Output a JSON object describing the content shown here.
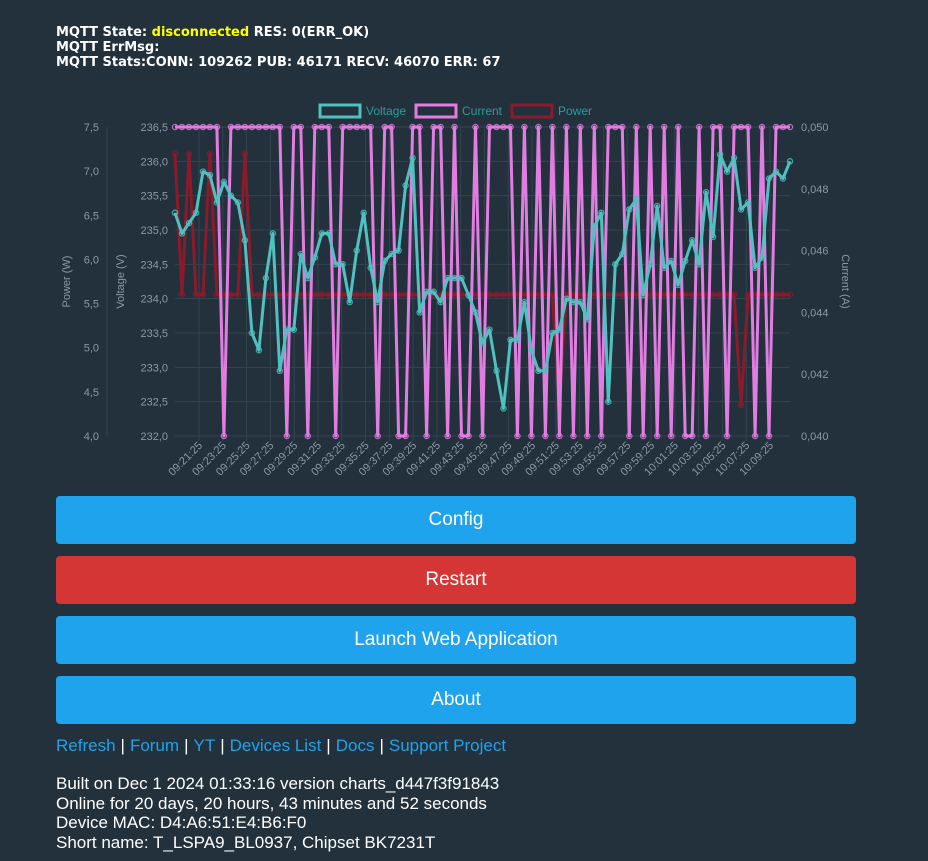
{
  "mqtt": {
    "state_label": "MQTT State:",
    "state_value": "disconnected",
    "res_text": "RES: 0(ERR_OK)",
    "errmsg_label": "MQTT ErrMsg:",
    "stats_text": "MQTT Stats:CONN: 109262 PUB: 46171 RECV: 46070 ERR: 67"
  },
  "colors": {
    "voltage": "#4fc1c1",
    "current": "#e17de1",
    "power": "#8b1a2b",
    "button_blue": "#1fa3ec",
    "button_red": "#d43535",
    "state_yellow": "#ffff00"
  },
  "chart_data": {
    "type": "line",
    "legend_position": "top",
    "grid": true,
    "x_ticks": [
      "09:21:25",
      "09:23:25",
      "09:25:25",
      "09:27:25",
      "09:29:25",
      "09:31:25",
      "09:33:25",
      "09:35:25",
      "09:37:25",
      "09:39:25",
      "09:41:25",
      "09:43:25",
      "09:45:25",
      "09:47:25",
      "09:49:25",
      "09:51:25",
      "09:53:25",
      "09:55:25",
      "09:57:25",
      "09:59:25",
      "10:01:25",
      "10:03:25",
      "10:05:25",
      "10:07:25",
      "10:09:25"
    ],
    "axes": {
      "power": {
        "label": "Power (W)",
        "range": [
          4.0,
          7.5
        ],
        "ticks": [
          "4,0",
          "4,5",
          "5,0",
          "5,5",
          "6,0",
          "6,5",
          "7,0",
          "7,5"
        ]
      },
      "voltage": {
        "label": "Voltage (V)",
        "range": [
          232.0,
          236.5
        ],
        "ticks": [
          "232,0",
          "232,5",
          "233,0",
          "233,5",
          "234,0",
          "234,5",
          "235,0",
          "235,5",
          "236,0",
          "236,5"
        ]
      },
      "current": {
        "label": "Current (A)",
        "range": [
          0.04,
          0.05
        ],
        "ticks": [
          "0,040",
          "0,042",
          "0,044",
          "0,046",
          "0,048",
          "0,050"
        ]
      }
    },
    "series": [
      {
        "name": "Voltage",
        "axis": "voltage",
        "values": [
          235.25,
          234.95,
          235.1,
          235.25,
          235.85,
          235.8,
          235.4,
          235.7,
          235.5,
          235.4,
          234.85,
          233.5,
          233.25,
          234.3,
          234.95,
          232.95,
          233.55,
          233.55,
          234.65,
          234.3,
          234.6,
          234.95,
          234.95,
          234.5,
          234.5,
          233.95,
          234.7,
          235.25,
          234.45,
          233.95,
          234.55,
          234.65,
          234.7,
          235.65,
          236.05,
          233.8,
          234.1,
          234.1,
          233.95,
          234.3,
          234.3,
          234.3,
          234.05,
          233.8,
          233.35,
          233.55,
          232.95,
          232.4,
          233.4,
          233.4,
          233.95,
          233.25,
          232.95,
          232.95,
          233.5,
          233.55,
          234.0,
          233.95,
          233.95,
          233.7,
          235.05,
          235.25,
          232.5,
          234.5,
          234.65,
          235.3,
          235.45,
          234.05,
          234.5,
          235.35,
          234.45,
          234.55,
          234.2,
          234.55,
          234.85,
          234.5,
          235.55,
          234.9,
          236.1,
          235.85,
          236.05,
          235.3,
          235.4,
          234.45,
          234.6,
          235.75,
          235.85,
          235.75,
          236.0
        ]
      },
      {
        "name": "Current",
        "axis": "current",
        "values": [
          0.05,
          0.05,
          0.05,
          0.05,
          0.05,
          0.05,
          0.05,
          0.04,
          0.05,
          0.05,
          0.05,
          0.05,
          0.05,
          0.05,
          0.05,
          0.05,
          0.04,
          0.05,
          0.05,
          0.04,
          0.05,
          0.05,
          0.05,
          0.04,
          0.05,
          0.05,
          0.05,
          0.05,
          0.05,
          0.04,
          0.05,
          0.05,
          0.04,
          0.04,
          0.05,
          0.05,
          0.04,
          0.05,
          0.05,
          0.04,
          0.05,
          0.04,
          0.04,
          0.05,
          0.04,
          0.05,
          0.05,
          0.05,
          0.05,
          0.04,
          0.05,
          0.04,
          0.05,
          0.04,
          0.05,
          0.04,
          0.05,
          0.04,
          0.05,
          0.04,
          0.05,
          0.04,
          0.05,
          0.05,
          0.05,
          0.04,
          0.05,
          0.04,
          0.05,
          0.04,
          0.05,
          0.04,
          0.05,
          0.04,
          0.04,
          0.05,
          0.04,
          0.05,
          0.05,
          0.04,
          0.05,
          0.05,
          0.05,
          0.04,
          0.05,
          0.04,
          0.05,
          0.05,
          0.05
        ]
      },
      {
        "name": "Power",
        "axis": "power",
        "values": [
          7.2,
          5.6,
          7.2,
          5.6,
          5.6,
          7.2,
          5.6,
          5.6,
          5.6,
          5.6,
          7.2,
          5.6,
          5.6,
          5.6,
          5.6,
          5.6,
          5.6,
          5.6,
          5.6,
          5.6,
          5.6,
          5.6,
          5.6,
          5.6,
          5.6,
          5.6,
          5.6,
          5.6,
          5.6,
          5.6,
          5.6,
          5.6,
          5.6,
          5.6,
          5.6,
          5.6,
          5.6,
          5.6,
          5.6,
          5.6,
          5.6,
          5.6,
          5.6,
          5.6,
          5.6,
          5.6,
          5.6,
          5.6,
          5.6,
          5.6,
          5.6,
          5.6,
          5.6,
          5.6,
          5.6,
          4.35,
          5.6,
          5.6,
          5.6,
          5.6,
          5.6,
          5.6,
          5.6,
          5.6,
          5.6,
          5.6,
          5.6,
          5.6,
          5.6,
          5.6,
          5.6,
          5.6,
          5.6,
          5.6,
          5.6,
          5.6,
          5.6,
          5.6,
          5.6,
          5.6,
          5.6,
          4.35,
          5.6,
          5.6,
          5.6,
          5.6,
          5.6,
          5.6,
          5.6
        ]
      }
    ]
  },
  "buttons": {
    "config": "Config",
    "restart": "Restart",
    "launch": "Launch Web Application",
    "about": "About"
  },
  "links": {
    "refresh": "Refresh",
    "forum": "Forum",
    "yt": "YT",
    "devices": "Devices List",
    "docs": "Docs",
    "support": "Support Project",
    "separator": "|"
  },
  "info": {
    "built": "Built on Dec 1 2024 01:33:16 version charts_d447f3f91843",
    "online": "Online for 20 days, 20 hours, 43 minutes and 52 seconds",
    "mac": "Device MAC: D4:A6:51:E4:B6:F0",
    "short": "Short name: T_LSPA9_BL0937, Chipset BK7231T"
  }
}
